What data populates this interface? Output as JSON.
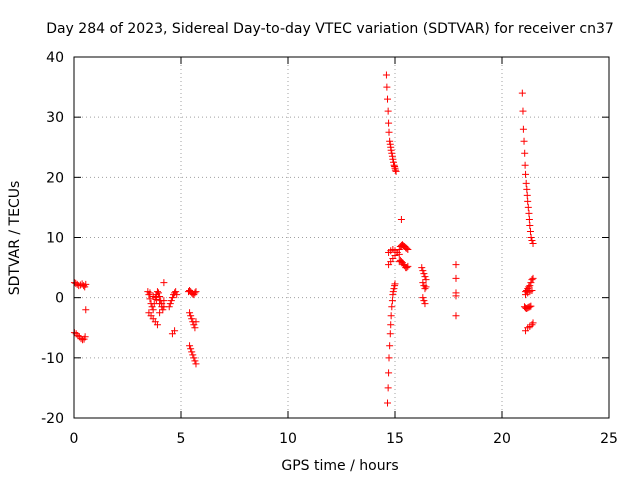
{
  "chart_data": {
    "type": "scatter",
    "title": "Day 284 of 2023, Sidereal Day-to-day VTEC variation (SDTVAR) for receiver cn37",
    "xlabel": "GPS time / hours",
    "ylabel": "SDTVAR / TECUs",
    "xlim": [
      0,
      25
    ],
    "ylim": [
      -20,
      40
    ],
    "xticks": [
      0,
      5,
      10,
      15,
      20,
      25
    ],
    "yticks": [
      -20,
      -10,
      0,
      10,
      20,
      30,
      40
    ],
    "grid": true,
    "marker": "+",
    "color": "#ff0000",
    "series": [
      {
        "name": "SDTVAR",
        "x": [
          0.02,
          0.08,
          0.15,
          0.22,
          0.3,
          0.38,
          0.45,
          0.5,
          0.55,
          0.02,
          0.1,
          0.18,
          0.25,
          0.33,
          0.4,
          0.47,
          0.52,
          0.55,
          3.45,
          3.5,
          3.55,
          3.6,
          3.65,
          3.7,
          3.75,
          3.8,
          3.85,
          3.9,
          3.95,
          4.0,
          4.05,
          4.1,
          4.15,
          4.2,
          3.5,
          3.6,
          3.7,
          3.8,
          3.9,
          4.0,
          4.1,
          4.2,
          3.55,
          3.7,
          3.85,
          4.0,
          4.45,
          4.5,
          4.55,
          4.6,
          4.65,
          4.7,
          4.75,
          4.8,
          4.6,
          4.7,
          4.2,
          5.35,
          5.4,
          5.45,
          5.5,
          5.55,
          5.6,
          5.65,
          5.7,
          5.4,
          5.45,
          5.5,
          5.55,
          5.6,
          5.65,
          5.7,
          5.4,
          5.45,
          5.5,
          5.55,
          5.6,
          5.65,
          5.7,
          14.6,
          14.62,
          14.65,
          14.68,
          14.7,
          14.72,
          14.75,
          14.78,
          14.8,
          14.82,
          14.85,
          14.88,
          14.9,
          14.93,
          14.96,
          14.98,
          15.0,
          15.02,
          15.05,
          14.65,
          14.68,
          14.7,
          14.72,
          14.75,
          14.78,
          14.8,
          14.82,
          14.85,
          14.88,
          14.9,
          14.92,
          14.95,
          14.98,
          15.0,
          14.7,
          14.8,
          14.9,
          15.0,
          15.1,
          15.2,
          14.7,
          14.8,
          14.9,
          15.0,
          15.1,
          15.2,
          15.2,
          15.25,
          15.3,
          15.35,
          15.4,
          15.45,
          15.5,
          15.55,
          15.6,
          15.25,
          15.3,
          15.35,
          15.4,
          15.45,
          15.5,
          15.55,
          15.6,
          15.3,
          16.25,
          16.3,
          16.35,
          16.4,
          16.45,
          16.3,
          16.35,
          16.4,
          16.45,
          16.3,
          16.35,
          16.4,
          17.85,
          17.85,
          17.85,
          17.85,
          17.85,
          20.95,
          20.98,
          21.0,
          21.03,
          21.06,
          21.08,
          21.1,
          21.13,
          21.16,
          21.18,
          21.2,
          21.23,
          21.26,
          21.28,
          21.3,
          21.33,
          21.36,
          21.4,
          21.45,
          21.1,
          21.15,
          21.2,
          21.25,
          21.3,
          21.35,
          21.4,
          21.45,
          21.05,
          21.1,
          21.15,
          21.2,
          21.25,
          21.3,
          21.35,
          21.1,
          21.2,
          21.3,
          21.4,
          21.45,
          21.1,
          21.2,
          21.3,
          21.4
        ],
        "y": [
          2.5,
          2.4,
          2.2,
          2.0,
          2.1,
          2.3,
          2.0,
          1.8,
          2.2,
          -5.8,
          -6.0,
          -6.3,
          -6.5,
          -6.8,
          -7.0,
          -6.9,
          -6.5,
          -2.0,
          1.0,
          0.5,
          -0.2,
          -1.0,
          -1.5,
          -2.0,
          -1.0,
          0.0,
          0.5,
          1.0,
          0.8,
          0.2,
          -0.5,
          -1.0,
          -2.0,
          -1.5,
          -2.5,
          -3.0,
          -3.5,
          -4.0,
          -4.5,
          -2.5,
          -1.5,
          -0.5,
          0.8,
          0.2,
          -0.3,
          -1.0,
          -1.5,
          -1.0,
          -0.5,
          0.0,
          0.5,
          0.8,
          1.0,
          0.5,
          -6.0,
          -5.5,
          2.5,
          1.0,
          1.2,
          1.0,
          0.8,
          0.6,
          0.5,
          0.8,
          1.0,
          -2.5,
          -3.0,
          -3.5,
          -4.0,
          -4.5,
          -5.0,
          -4.0,
          -8.0,
          -8.5,
          -9.0,
          -9.5,
          -10.0,
          -10.5,
          -11.0,
          37.0,
          35.0,
          33.0,
          31.0,
          29.0,
          27.5,
          26.0,
          25.5,
          25.0,
          24.5,
          24.0,
          23.5,
          23.0,
          22.5,
          22.0,
          21.8,
          21.5,
          21.2,
          21.0,
          -17.5,
          -15.0,
          -12.5,
          -10.0,
          -8.0,
          -6.0,
          -4.5,
          -3.0,
          -1.5,
          -0.5,
          0.5,
          1.0,
          1.5,
          2.0,
          2.3,
          5.5,
          6.0,
          6.5,
          7.0,
          7.5,
          8.0,
          7.5,
          7.8,
          8.0,
          7.8,
          7.5,
          7.2,
          6.0,
          6.2,
          6.0,
          5.8,
          5.5,
          5.3,
          5.0,
          5.0,
          5.2,
          8.5,
          8.7,
          8.8,
          8.6,
          8.5,
          8.3,
          8.2,
          8.0,
          13.0,
          5.0,
          4.5,
          4.0,
          3.5,
          3.0,
          2.5,
          2.0,
          1.5,
          1.8,
          0.0,
          -0.5,
          -1.0,
          5.5,
          3.2,
          0.8,
          0.3,
          -3.0,
          34.0,
          31.0,
          28.0,
          26.0,
          24.0,
          22.0,
          20.5,
          19.0,
          18.0,
          17.0,
          16.0,
          15.0,
          14.0,
          13.0,
          12.0,
          11.0,
          10.0,
          9.5,
          9.0,
          1.0,
          1.2,
          1.5,
          1.8,
          2.0,
          2.5,
          3.0,
          3.2,
          -1.5,
          -1.7,
          -1.8,
          -1.7,
          -1.6,
          -1.5,
          -1.4,
          -5.5,
          -5.0,
          -4.8,
          -4.5,
          -4.2,
          0.5,
          0.8,
          1.0,
          1.2
        ]
      }
    ]
  }
}
